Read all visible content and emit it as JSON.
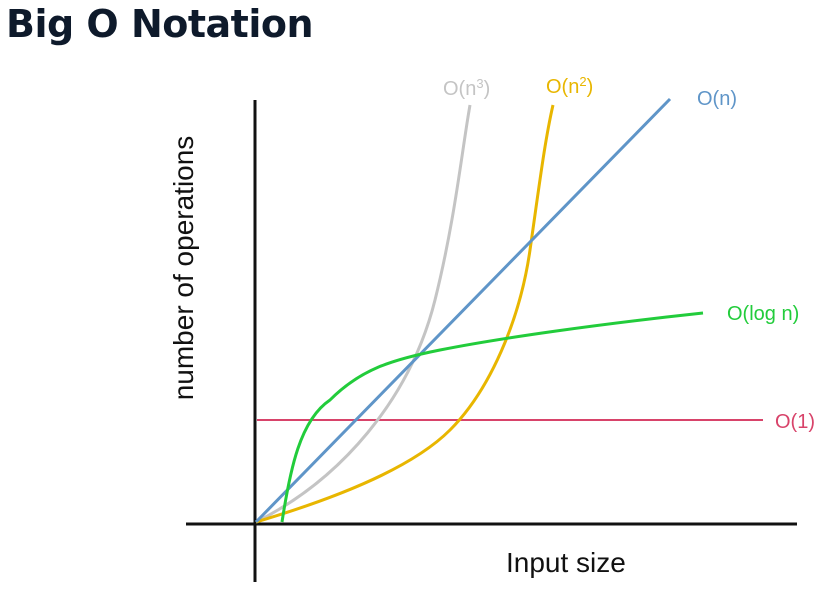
{
  "title": "Big O Notation",
  "chart_data": {
    "type": "line",
    "title": "Big O Notation",
    "xlabel": "Input size",
    "ylabel": "number of operations",
    "grid": false,
    "legend": "labels at line ends",
    "series": [
      {
        "name": "O(n³)",
        "base": "O(n",
        "sup": "3",
        "close": ")",
        "color": "#c4c4c4"
      },
      {
        "name": "O(n²)",
        "base": "O(n",
        "sup": "2",
        "close": ")",
        "color": "#e8b600"
      },
      {
        "name": "O(n)",
        "color": "#5f95c8"
      },
      {
        "name": "O(log n)",
        "color": "#22cc3b"
      },
      {
        "name": "O(1)",
        "color": "#d8436a"
      }
    ]
  }
}
